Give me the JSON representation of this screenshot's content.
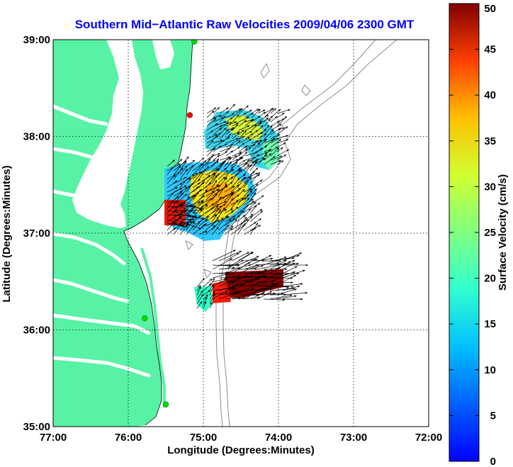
{
  "chart_data": {
    "type": "map",
    "title": "Southern Mid−Atlantic Raw Velocities 2009/04/06 2300 GMT",
    "xlabel": "Longitude (Degrees:Minutes)",
    "ylabel": "Latitude (Degrees:Minutes)",
    "x_ticks": [
      "77:00",
      "76:00",
      "75:00",
      "74:00",
      "73:00",
      "72:00"
    ],
    "y_ticks": [
      "39:00",
      "38:00",
      "37:00",
      "36:00",
      "35:00"
    ],
    "xlim": [
      -77,
      -72
    ],
    "ylim": [
      35,
      39
    ],
    "grid": "dotted",
    "colorbar": {
      "label": "Surface Velocity (cm/s)",
      "range": [
        0,
        50
      ],
      "ticks": [
        "0",
        "5",
        "10",
        "15",
        "20",
        "25",
        "30",
        "35",
        "40",
        "45",
        "50"
      ],
      "colormap": "jet"
    },
    "colors": {
      "land": "#58f2a6",
      "bathymetry": "#8c8c8c",
      "title": "#0000ff",
      "station_green": "#00dd00",
      "station_red": "#ff0000"
    },
    "stations": [
      {
        "lon": -75.12,
        "lat": 38.98,
        "status": "green"
      },
      {
        "lon": -75.18,
        "lat": 38.22,
        "status": "red"
      },
      {
        "lon": -75.78,
        "lat": 36.12,
        "status": "green"
      },
      {
        "lon": -75.5,
        "lat": 35.23,
        "status": "green"
      }
    ]
  }
}
